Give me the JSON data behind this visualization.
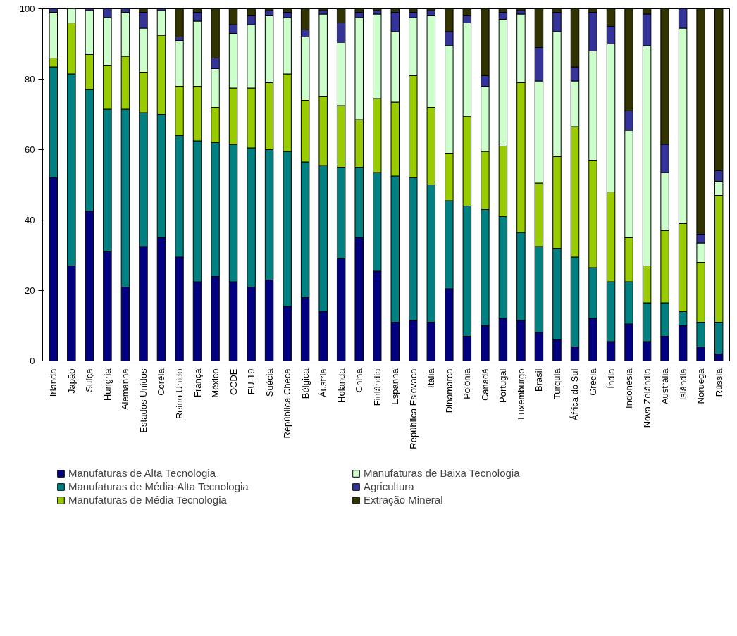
{
  "chart_data": {
    "type": "bar",
    "stacked": true,
    "categories": [
      "Irlanda",
      "Japão",
      "Suíça",
      "Hungria",
      "Alemanha",
      "Estados Unidos",
      "Coréia",
      "Reino Unido",
      "França",
      "México",
      "OCDE",
      "EU-19",
      "Suécia",
      "República Checa",
      "Bélgica",
      "Áustria",
      "Holanda",
      "China",
      "Finlândia",
      "Espanha",
      "República Eslovaca",
      "Itália",
      "Dinamarca",
      "Polônia",
      "Canadá",
      "Portugal",
      "Luxemburgo",
      "Brasil",
      "Turquia",
      "África do Sul",
      "Grécia",
      "Índia",
      "Indonésia",
      "Nova Zelândia",
      "Austrália",
      "Islândia",
      "Noruega",
      "Rússia"
    ],
    "series": [
      {
        "name": "Manufaturas de Alta Tecnologia",
        "color": "#000080",
        "values": [
          52,
          27,
          42.5,
          31,
          21,
          32.5,
          35,
          29.5,
          22.5,
          24,
          22.5,
          21,
          23,
          15.5,
          18,
          14,
          29,
          35,
          25.5,
          11,
          11.5,
          11,
          20.5,
          7,
          10,
          12,
          11.5,
          8,
          6,
          4,
          12,
          5.5,
          10.5,
          5.5,
          7,
          10,
          4,
          2
        ]
      },
      {
        "name": "Manufaturas de Média-Alta Tecnologia",
        "color": "#008080",
        "values": [
          31.5,
          54.5,
          34.5,
          40.5,
          50.5,
          38,
          35,
          34.5,
          40,
          38,
          39,
          39.5,
          37,
          44,
          38.5,
          41.5,
          26,
          20,
          28,
          41.5,
          40.5,
          39,
          25,
          37,
          33,
          29,
          25,
          24.5,
          26,
          25.5,
          14.5,
          17,
          12,
          11,
          9.5,
          4,
          7,
          9
        ]
      },
      {
        "name": "Manufaturas de Média Tecnologia",
        "color": "#99cc00",
        "values": [
          2.5,
          14.5,
          10,
          12.5,
          15,
          11.5,
          22.5,
          14,
          15.5,
          10,
          16,
          17,
          19,
          22,
          17.5,
          19.5,
          17.5,
          13.5,
          21,
          21,
          29,
          22,
          13.5,
          25.5,
          16.5,
          20,
          42.5,
          18,
          26,
          37,
          30.5,
          25.5,
          12.5,
          10.5,
          20.5,
          25,
          17,
          36
        ]
      },
      {
        "name": "Manufaturas de Baixa Tecnologia",
        "color": "#ccffcc",
        "values": [
          13,
          4,
          12.5,
          13.5,
          12.5,
          12.5,
          7,
          13,
          18.5,
          11,
          15.5,
          18,
          19,
          16,
          18,
          23.5,
          18,
          29,
          24,
          20,
          16.5,
          26,
          30.5,
          26.5,
          18.5,
          36,
          19.5,
          29,
          35.5,
          13,
          31,
          42,
          30.5,
          62.5,
          16.5,
          55.5,
          5.5,
          4
        ]
      },
      {
        "name": "Agricultura",
        "color": "#333399",
        "values": [
          1,
          0,
          0.5,
          2.5,
          1,
          4.5,
          0.5,
          1,
          2.5,
          3,
          2.5,
          2.5,
          1.5,
          1.5,
          2,
          1,
          5.5,
          1.5,
          1,
          5.5,
          1.5,
          1.5,
          4,
          2,
          3,
          2,
          1,
          9.5,
          5.5,
          4,
          11,
          5,
          5.5,
          9,
          8,
          5.5,
          2.5,
          3
        ]
      },
      {
        "name": "Extração Mineral",
        "color": "#333300",
        "values": [
          0,
          0,
          0,
          0,
          0,
          1,
          0,
          8,
          1,
          14,
          4.5,
          2,
          0.5,
          1,
          6,
          0.5,
          4,
          1,
          0.5,
          1,
          1,
          0.5,
          6.5,
          2,
          19,
          1,
          0.5,
          11,
          1,
          16.5,
          1,
          5,
          29,
          1.5,
          38.5,
          0,
          64,
          46
        ]
      }
    ],
    "ylim": [
      0,
      100
    ],
    "yticks": [
      0,
      20,
      40,
      60,
      80,
      100
    ],
    "grid": false,
    "legend": "bottom"
  }
}
